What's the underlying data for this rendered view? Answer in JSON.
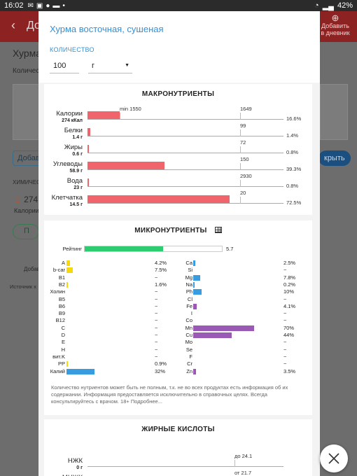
{
  "status_bar": {
    "time": "16:02",
    "battery": "42%"
  },
  "background": {
    "header_title": "До",
    "add_label_line1": "Добавить",
    "add_label_line2": "в дневник",
    "food_title": "Хурма",
    "qty_label": "Количес",
    "add_btn": "Добав",
    "open_btn": "крыть",
    "chem_label": "ХИМИЧЕС",
    "cal_value": "274",
    "cal_label": "Калории",
    "tab_label": "П",
    "add_small": "Добав",
    "source_label": "Источник х"
  },
  "modal": {
    "title": "Хурма восточная, сушеная",
    "qty_label": "КОЛИЧЕСТВО",
    "qty_value": "100",
    "unit": "г"
  },
  "macro": {
    "title": "МАКРОНУТРИЕНТЫ",
    "rows": [
      {
        "name": "Калории",
        "sub": "274 кКал",
        "min_label": "min 1550",
        "ref": "1649",
        "pct": "16.6%",
        "percent": 16.6
      },
      {
        "name": "Белки",
        "sub": "1.4 г",
        "min_label": "",
        "ref": "99",
        "pct": "1.4%",
        "percent": 1.4
      },
      {
        "name": "Жиры",
        "sub": "0.6 г",
        "min_label": "",
        "ref": "72",
        "pct": "0.8%",
        "percent": 0.8
      },
      {
        "name": "Углеводы",
        "sub": "58.9 г",
        "min_label": "",
        "ref": "150",
        "pct": "39.3%",
        "percent": 39.3
      },
      {
        "name": "Вода",
        "sub": "23 г",
        "min_label": "",
        "ref": "2930",
        "pct": "0.8%",
        "percent": 0.8
      },
      {
        "name": "Клетчатка",
        "sub": "14.5 г",
        "min_label": "",
        "ref": "20",
        "pct": "72.5%",
        "percent": 72.5
      }
    ]
  },
  "micro": {
    "title": "МИКРОНУТРИЕНТЫ",
    "rating_label": "Рейтинг",
    "rating_value": "5.7",
    "rating_fraction": 0.057,
    "left": [
      {
        "name": "A",
        "val": "4.2%",
        "percent": 4.2,
        "color": "#f5d90a"
      },
      {
        "name": "b-car",
        "val": "7.5%",
        "percent": 7.5,
        "color": "#f5d90a"
      },
      {
        "name": "B1",
        "val": "~",
        "percent": 0,
        "color": "#f5d90a"
      },
      {
        "name": "B2",
        "val": "1.6%",
        "percent": 1.6,
        "color": "#f5d90a"
      },
      {
        "name": "Холин",
        "val": "~",
        "percent": 0,
        "color": "#f5d90a"
      },
      {
        "name": "B5",
        "val": "~",
        "percent": 0,
        "color": "#f5d90a"
      },
      {
        "name": "B6",
        "val": "~",
        "percent": 0,
        "color": "#f5d90a"
      },
      {
        "name": "B9",
        "val": "~",
        "percent": 0,
        "color": "#f5d90a"
      },
      {
        "name": "B12",
        "val": "~",
        "percent": 0,
        "color": "#f5d90a"
      },
      {
        "name": "C",
        "val": "~",
        "percent": 0,
        "color": "#f5d90a"
      },
      {
        "name": "D",
        "val": "~",
        "percent": 0,
        "color": "#f5d90a"
      },
      {
        "name": "E",
        "val": "~",
        "percent": 0,
        "color": "#f5d90a"
      },
      {
        "name": "H",
        "val": "~",
        "percent": 0,
        "color": "#f5d90a"
      },
      {
        "name": "вит.K",
        "val": "~",
        "percent": 0,
        "color": "#f5d90a"
      },
      {
        "name": "PP",
        "val": "0.9%",
        "percent": 0.9,
        "color": "#f5d90a"
      },
      {
        "name": "Калий",
        "val": "32%",
        "percent": 32,
        "color": "#3a9ce0"
      }
    ],
    "right": [
      {
        "name": "Ca",
        "val": "2.5%",
        "percent": 2.5,
        "color": "#3a9ce0"
      },
      {
        "name": "Si",
        "val": "~",
        "percent": 0,
        "color": "#3a9ce0"
      },
      {
        "name": "Mg",
        "val": "7.8%",
        "percent": 7.8,
        "color": "#3a9ce0"
      },
      {
        "name": "Na",
        "val": "0.2%",
        "percent": 0.2,
        "color": "#3a9ce0"
      },
      {
        "name": "Ph",
        "val": "10%",
        "percent": 10,
        "color": "#3a9ce0"
      },
      {
        "name": "Cl",
        "val": "~",
        "percent": 0,
        "color": "#3a9ce0"
      },
      {
        "name": "Fe",
        "val": "4.1%",
        "percent": 4.1,
        "color": "#9b59b6"
      },
      {
        "name": "I",
        "val": "~",
        "percent": 0,
        "color": "#9b59b6"
      },
      {
        "name": "Co",
        "val": "~",
        "percent": 0,
        "color": "#9b59b6"
      },
      {
        "name": "Mn",
        "val": "70%",
        "percent": 70,
        "color": "#9b59b6"
      },
      {
        "name": "Cu",
        "val": "44%",
        "percent": 44,
        "color": "#9b59b6"
      },
      {
        "name": "Mo",
        "val": "~",
        "percent": 0,
        "color": "#9b59b6"
      },
      {
        "name": "Se",
        "val": "~",
        "percent": 0,
        "color": "#9b59b6"
      },
      {
        "name": "F",
        "val": "~",
        "percent": 0,
        "color": "#9b59b6"
      },
      {
        "name": "Cr",
        "val": "~",
        "percent": 0,
        "color": "#9b59b6"
      },
      {
        "name": "Zn",
        "val": "3.5%",
        "percent": 3.5,
        "color": "#9b59b6"
      }
    ],
    "note": "Количество нутриентов может быть не полным, т.к. не во всех продуктах есть информация об их содержании. Информация предоставляется исключительно в справочных целях. Всегда консультируйтесь с врачом. 18+ Подробнее..."
  },
  "fatty": {
    "title": "ЖИРНЫЕ КИСЛОТЫ",
    "rows": [
      {
        "name": "НЖК",
        "sub": "0 г",
        "ref": "до 24.1"
      },
      {
        "name": "МНЖК",
        "sub": "0 г",
        "ref": "от 21.7"
      }
    ]
  }
}
